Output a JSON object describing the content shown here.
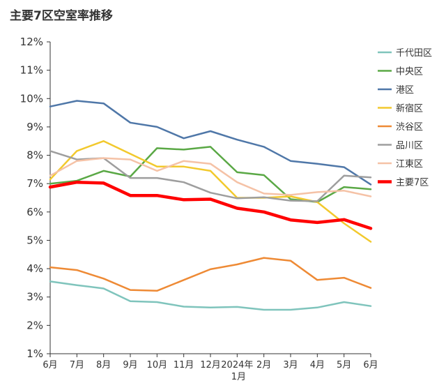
{
  "chart_data": {
    "type": "line",
    "title": "主要7区空室率推移",
    "xlabel": "",
    "ylabel": "",
    "categories": [
      "6月",
      "7月",
      "8月",
      "9月",
      "10月",
      "11月",
      "12月",
      "2024年1月",
      "2月",
      "3月",
      "4月",
      "5月",
      "6月"
    ],
    "x_tick_labels": [
      {
        "main": "6月",
        "sub": ""
      },
      {
        "main": "7月",
        "sub": ""
      },
      {
        "main": "8月",
        "sub": ""
      },
      {
        "main": "9月",
        "sub": ""
      },
      {
        "main": "10月",
        "sub": ""
      },
      {
        "main": "11月",
        "sub": ""
      },
      {
        "main": "12月",
        "sub": ""
      },
      {
        "main": "2024年",
        "sub": "1月"
      },
      {
        "main": "2月",
        "sub": ""
      },
      {
        "main": "3月",
        "sub": ""
      },
      {
        "main": "4月",
        "sub": ""
      },
      {
        "main": "5月",
        "sub": ""
      },
      {
        "main": "6月",
        "sub": ""
      }
    ],
    "ylim": [
      1,
      12
    ],
    "y_ticks": [
      "1%",
      "2%",
      "3%",
      "4%",
      "5%",
      "6%",
      "7%",
      "8%",
      "9%",
      "10%",
      "11%",
      "12%"
    ],
    "y_tick_values": [
      1,
      2,
      3,
      4,
      5,
      6,
      7,
      8,
      9,
      10,
      11,
      12
    ],
    "grid": false,
    "legend_position": "right",
    "series": [
      {
        "name": "千代田区",
        "color": "#7FC4BC",
        "width": 2.5,
        "values": [
          3.55,
          3.42,
          3.3,
          2.85,
          2.82,
          2.66,
          2.63,
          2.65,
          2.55,
          2.55,
          2.63,
          2.82,
          2.68
        ]
      },
      {
        "name": "中央区",
        "color": "#5AA845",
        "width": 2.5,
        "values": [
          7.0,
          7.1,
          7.45,
          7.25,
          8.25,
          8.2,
          8.3,
          7.4,
          7.3,
          6.45,
          6.35,
          6.88,
          6.8
        ]
      },
      {
        "name": "港区",
        "color": "#4F77A8",
        "width": 2.5,
        "values": [
          9.72,
          9.92,
          9.83,
          9.15,
          9.0,
          8.6,
          8.85,
          8.55,
          8.3,
          7.8,
          7.7,
          7.58,
          6.97
        ]
      },
      {
        "name": "新宿区",
        "color": "#F2C92D",
        "width": 2.5,
        "values": [
          7.15,
          8.15,
          8.5,
          8.05,
          7.6,
          7.6,
          7.45,
          6.5,
          6.5,
          6.55,
          6.35,
          5.6,
          4.95
        ]
      },
      {
        "name": "渋谷区",
        "color": "#EE8A35",
        "width": 2.5,
        "values": [
          4.05,
          3.95,
          3.65,
          3.25,
          3.22,
          3.6,
          3.98,
          4.15,
          4.38,
          4.28,
          3.6,
          3.68,
          3.32
        ]
      },
      {
        "name": "品川区",
        "color": "#9E9E9E",
        "width": 2.5,
        "values": [
          8.15,
          7.85,
          7.9,
          7.2,
          7.2,
          7.05,
          6.68,
          6.48,
          6.52,
          6.4,
          6.38,
          7.28,
          7.22
        ]
      },
      {
        "name": "江東区",
        "color": "#F5C2A6",
        "width": 2.5,
        "values": [
          7.28,
          7.8,
          7.9,
          7.85,
          7.45,
          7.8,
          7.7,
          7.05,
          6.65,
          6.6,
          6.7,
          6.75,
          6.55
        ]
      },
      {
        "name": "主要7区",
        "color": "#FF0000",
        "width": 4.5,
        "values": [
          6.88,
          7.05,
          7.02,
          6.58,
          6.58,
          6.43,
          6.45,
          6.13,
          6.0,
          5.72,
          5.63,
          5.73,
          5.42
        ]
      }
    ]
  }
}
